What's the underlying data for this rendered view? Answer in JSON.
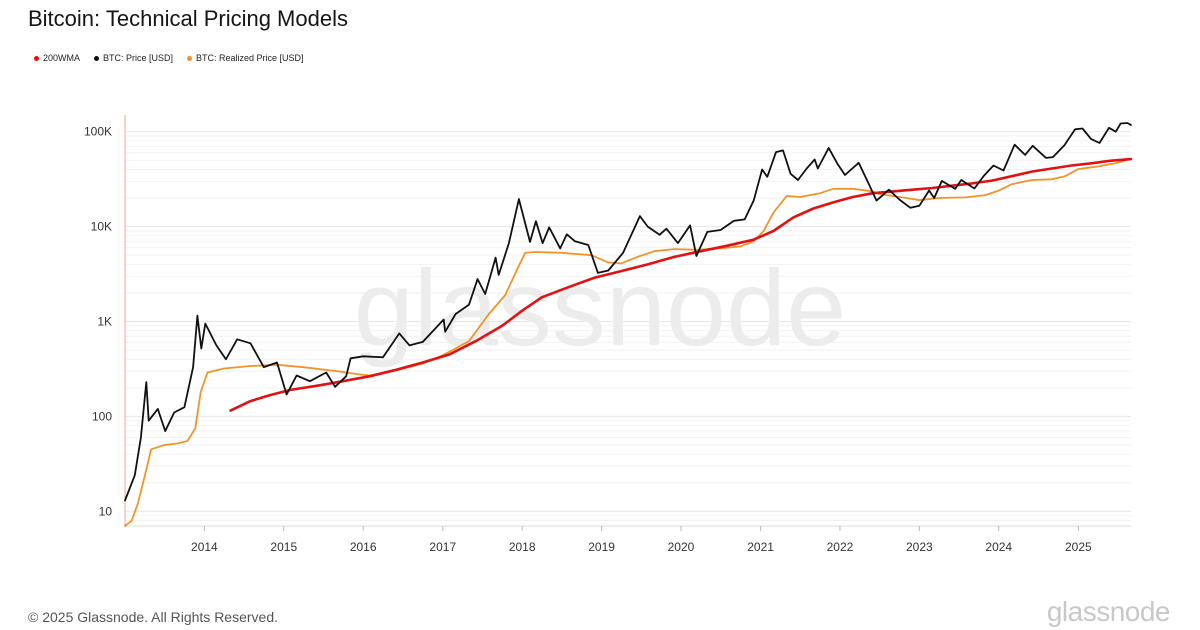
{
  "title": "Bitcoin: Technical Pricing Models",
  "footer": "© 2025 Glassnode. All Rights Reserved.",
  "brand": "glassnode",
  "watermark": "glassnode",
  "chart_data": {
    "type": "line",
    "title": "Bitcoin: Technical Pricing Models",
    "xlabel": "",
    "ylabel": "",
    "y_scale": "log",
    "ylim": [
      7,
      150000
    ],
    "xlim": [
      "2013-01-01",
      "2025-08-31"
    ],
    "x_ticks": [
      "2014",
      "2015",
      "2016",
      "2017",
      "2018",
      "2019",
      "2020",
      "2021",
      "2022",
      "2023",
      "2024",
      "2025"
    ],
    "y_ticks": [
      {
        "value": 10,
        "label": "10"
      },
      {
        "value": 100,
        "label": "100"
      },
      {
        "value": 1000,
        "label": "1K"
      },
      {
        "value": 10000,
        "label": "10K"
      },
      {
        "value": 100000,
        "label": "100K"
      }
    ],
    "grid": true,
    "legend_position": "top-left",
    "series": [
      {
        "name": "200WMA",
        "color": "#e01212",
        "points": [
          [
            "2014-05-01",
            115
          ],
          [
            "2014-08-01",
            145
          ],
          [
            "2014-11-01",
            168
          ],
          [
            "2015-02-01",
            190
          ],
          [
            "2015-06-01",
            210
          ],
          [
            "2015-10-01",
            235
          ],
          [
            "2016-02-01",
            265
          ],
          [
            "2016-06-01",
            310
          ],
          [
            "2016-10-01",
            370
          ],
          [
            "2017-02-01",
            450
          ],
          [
            "2017-06-01",
            620
          ],
          [
            "2017-10-01",
            900
          ],
          [
            "2018-01-01",
            1300
          ],
          [
            "2018-04-01",
            1800
          ],
          [
            "2018-08-01",
            2300
          ],
          [
            "2018-12-01",
            2900
          ],
          [
            "2019-04-01",
            3400
          ],
          [
            "2019-08-01",
            4000
          ],
          [
            "2019-12-01",
            4800
          ],
          [
            "2020-04-01",
            5500
          ],
          [
            "2020-08-01",
            6300
          ],
          [
            "2020-12-01",
            7300
          ],
          [
            "2021-03-01",
            9000
          ],
          [
            "2021-06-01",
            12500
          ],
          [
            "2021-09-01",
            15500
          ],
          [
            "2021-12-01",
            18000
          ],
          [
            "2022-03-01",
            20500
          ],
          [
            "2022-06-01",
            22500
          ],
          [
            "2022-09-01",
            23500
          ],
          [
            "2022-12-01",
            24500
          ],
          [
            "2023-03-01",
            25500
          ],
          [
            "2023-06-01",
            27000
          ],
          [
            "2023-09-01",
            28500
          ],
          [
            "2023-12-01",
            30500
          ],
          [
            "2024-03-01",
            34000
          ],
          [
            "2024-06-01",
            38000
          ],
          [
            "2024-09-01",
            41000
          ],
          [
            "2024-12-01",
            44000
          ],
          [
            "2025-03-01",
            46500
          ],
          [
            "2025-06-01",
            49500
          ],
          [
            "2025-08-31",
            51500
          ]
        ]
      },
      {
        "name": "BTC: Price [USD]",
        "color": "#111111",
        "points": [
          [
            "2013-01-01",
            13
          ],
          [
            "2013-02-15",
            24
          ],
          [
            "2013-03-15",
            60
          ],
          [
            "2013-04-09",
            230
          ],
          [
            "2013-04-20",
            90
          ],
          [
            "2013-06-01",
            120
          ],
          [
            "2013-07-05",
            70
          ],
          [
            "2013-08-15",
            110
          ],
          [
            "2013-10-01",
            125
          ],
          [
            "2013-11-10",
            330
          ],
          [
            "2013-11-30",
            1150
          ],
          [
            "2013-12-18",
            520
          ],
          [
            "2014-01-05",
            950
          ],
          [
            "2014-02-25",
            560
          ],
          [
            "2014-04-10",
            400
          ],
          [
            "2014-06-01",
            650
          ],
          [
            "2014-08-01",
            590
          ],
          [
            "2014-10-01",
            330
          ],
          [
            "2014-12-01",
            370
          ],
          [
            "2015-01-14",
            170
          ],
          [
            "2015-03-01",
            270
          ],
          [
            "2015-05-01",
            235
          ],
          [
            "2015-07-15",
            290
          ],
          [
            "2015-08-25",
            205
          ],
          [
            "2015-10-15",
            265
          ],
          [
            "2015-11-04",
            410
          ],
          [
            "2016-01-01",
            430
          ],
          [
            "2016-04-01",
            420
          ],
          [
            "2016-06-15",
            750
          ],
          [
            "2016-08-01",
            560
          ],
          [
            "2016-10-01",
            610
          ],
          [
            "2017-01-05",
            1050
          ],
          [
            "2017-01-12",
            780
          ],
          [
            "2017-03-01",
            1200
          ],
          [
            "2017-05-01",
            1500
          ],
          [
            "2017-06-10",
            2800
          ],
          [
            "2017-07-15",
            1950
          ],
          [
            "2017-09-01",
            4700
          ],
          [
            "2017-09-15",
            3100
          ],
          [
            "2017-11-01",
            6700
          ],
          [
            "2017-12-17",
            19500
          ],
          [
            "2018-02-06",
            6900
          ],
          [
            "2018-03-05",
            11400
          ],
          [
            "2018-04-05",
            6700
          ],
          [
            "2018-05-05",
            9800
          ],
          [
            "2018-06-25",
            5900
          ],
          [
            "2018-07-25",
            8300
          ],
          [
            "2018-09-01",
            7000
          ],
          [
            "2018-11-01",
            6400
          ],
          [
            "2018-12-15",
            3250
          ],
          [
            "2019-02-01",
            3450
          ],
          [
            "2019-04-10",
            5300
          ],
          [
            "2019-06-26",
            12900
          ],
          [
            "2019-08-01",
            10000
          ],
          [
            "2019-09-25",
            8200
          ],
          [
            "2019-10-26",
            9500
          ],
          [
            "2019-12-18",
            6700
          ],
          [
            "2020-02-12",
            10300
          ],
          [
            "2020-03-12",
            4900
          ],
          [
            "2020-05-01",
            8800
          ],
          [
            "2020-07-01",
            9200
          ],
          [
            "2020-09-01",
            11500
          ],
          [
            "2020-10-20",
            11900
          ],
          [
            "2020-12-01",
            19000
          ],
          [
            "2021-01-08",
            40000
          ],
          [
            "2021-02-01",
            33500
          ],
          [
            "2021-03-13",
            61000
          ],
          [
            "2021-04-14",
            63500
          ],
          [
            "2021-05-19",
            36000
          ],
          [
            "2021-06-22",
            31000
          ],
          [
            "2021-08-01",
            41000
          ],
          [
            "2021-09-07",
            51000
          ],
          [
            "2021-09-21",
            41000
          ],
          [
            "2021-11-10",
            67500
          ],
          [
            "2021-12-20",
            46000
          ],
          [
            "2022-01-24",
            35000
          ],
          [
            "2022-03-28",
            47000
          ],
          [
            "2022-05-12",
            28500
          ],
          [
            "2022-06-18",
            18800
          ],
          [
            "2022-08-14",
            24500
          ],
          [
            "2022-10-01",
            19300
          ],
          [
            "2022-11-21",
            15800
          ],
          [
            "2023-01-01",
            16600
          ],
          [
            "2023-02-15",
            24000
          ],
          [
            "2023-03-10",
            20000
          ],
          [
            "2023-04-14",
            30300
          ],
          [
            "2023-06-15",
            25000
          ],
          [
            "2023-07-13",
            31000
          ],
          [
            "2023-09-11",
            25200
          ],
          [
            "2023-10-25",
            34500
          ],
          [
            "2023-12-08",
            44000
          ],
          [
            "2024-01-23",
            39000
          ],
          [
            "2024-03-14",
            73000
          ],
          [
            "2024-05-01",
            57000
          ],
          [
            "2024-06-05",
            71000
          ],
          [
            "2024-08-05",
            53000
          ],
          [
            "2024-09-06",
            54000
          ],
          [
            "2024-10-29",
            72000
          ],
          [
            "2024-12-17",
            106000
          ],
          [
            "2025-01-20",
            108000
          ],
          [
            "2025-02-28",
            84000
          ],
          [
            "2025-04-08",
            76000
          ],
          [
            "2025-05-22",
            110000
          ],
          [
            "2025-06-22",
            100000
          ],
          [
            "2025-07-14",
            122000
          ],
          [
            "2025-08-14",
            123500
          ],
          [
            "2025-08-31",
            118000
          ]
        ]
      },
      {
        "name": "BTC: Realized Price [USD]",
        "color": "#f0942a",
        "points": [
          [
            "2013-01-01",
            7
          ],
          [
            "2013-02-01",
            8
          ],
          [
            "2013-03-01",
            12
          ],
          [
            "2013-04-10",
            28
          ],
          [
            "2013-05-01",
            45
          ],
          [
            "2013-07-01",
            50
          ],
          [
            "2013-09-01",
            52
          ],
          [
            "2013-10-15",
            55
          ],
          [
            "2013-11-20",
            75
          ],
          [
            "2013-12-15",
            180
          ],
          [
            "2014-01-15",
            290
          ],
          [
            "2014-04-01",
            320
          ],
          [
            "2014-08-01",
            340
          ],
          [
            "2014-12-01",
            350
          ],
          [
            "2015-04-01",
            330
          ],
          [
            "2015-09-01",
            300
          ],
          [
            "2015-12-01",
            280
          ],
          [
            "2016-02-01",
            270
          ],
          [
            "2016-06-01",
            305
          ],
          [
            "2016-10-01",
            360
          ],
          [
            "2017-01-01",
            440
          ],
          [
            "2017-05-01",
            620
          ],
          [
            "2017-08-01",
            1200
          ],
          [
            "2017-10-15",
            1900
          ],
          [
            "2017-12-15",
            3800
          ],
          [
            "2018-01-15",
            5300
          ],
          [
            "2018-03-01",
            5400
          ],
          [
            "2018-07-01",
            5300
          ],
          [
            "2018-11-15",
            5000
          ],
          [
            "2019-02-01",
            4200
          ],
          [
            "2019-04-01",
            4100
          ],
          [
            "2019-06-15",
            4800
          ],
          [
            "2019-09-01",
            5500
          ],
          [
            "2019-12-01",
            5800
          ],
          [
            "2020-03-15",
            5700
          ],
          [
            "2020-07-01",
            5900
          ],
          [
            "2020-10-01",
            6200
          ],
          [
            "2020-12-01",
            7000
          ],
          [
            "2021-01-15",
            9000
          ],
          [
            "2021-03-01",
            14000
          ],
          [
            "2021-05-01",
            21000
          ],
          [
            "2021-07-01",
            20500
          ],
          [
            "2021-10-01",
            22500
          ],
          [
            "2021-12-01",
            25000
          ],
          [
            "2022-03-01",
            25000
          ],
          [
            "2022-06-01",
            23500
          ],
          [
            "2022-07-01",
            22000
          ],
          [
            "2022-09-01",
            21000
          ],
          [
            "2022-11-01",
            20000
          ],
          [
            "2023-01-01",
            19000
          ],
          [
            "2023-04-01",
            20000
          ],
          [
            "2023-08-01",
            20300
          ],
          [
            "2023-11-01",
            21500
          ],
          [
            "2024-01-01",
            24000
          ],
          [
            "2024-03-01",
            28000
          ],
          [
            "2024-06-01",
            31000
          ],
          [
            "2024-09-01",
            31500
          ],
          [
            "2024-11-01",
            34000
          ],
          [
            "2025-01-01",
            40500
          ],
          [
            "2025-04-01",
            43000
          ],
          [
            "2025-07-01",
            47000
          ],
          [
            "2025-08-31",
            52000
          ]
        ]
      }
    ]
  }
}
